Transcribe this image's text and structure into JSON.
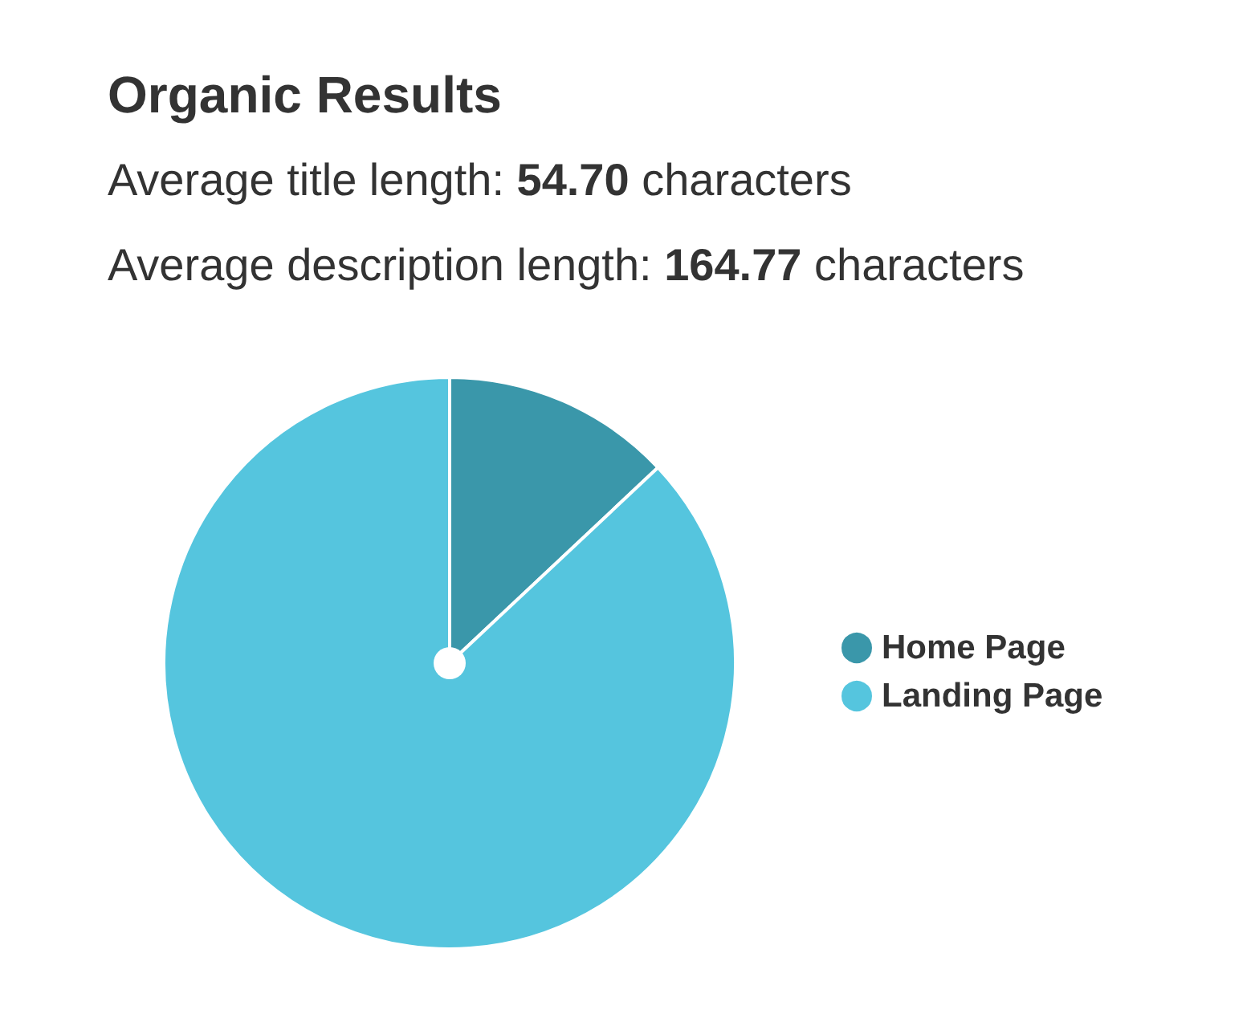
{
  "chart_data": {
    "type": "pie",
    "title": "Organic Results",
    "subtitle": "Average title length: 54.70 characters",
    "annotations": [
      "Average description length: 164.77 characters"
    ],
    "categories": [
      "Home Page",
      "Landing Page"
    ],
    "values": [
      13,
      87
    ],
    "colors": [
      "#3a97aa",
      "#55c5de"
    ],
    "legend": "right"
  }
}
